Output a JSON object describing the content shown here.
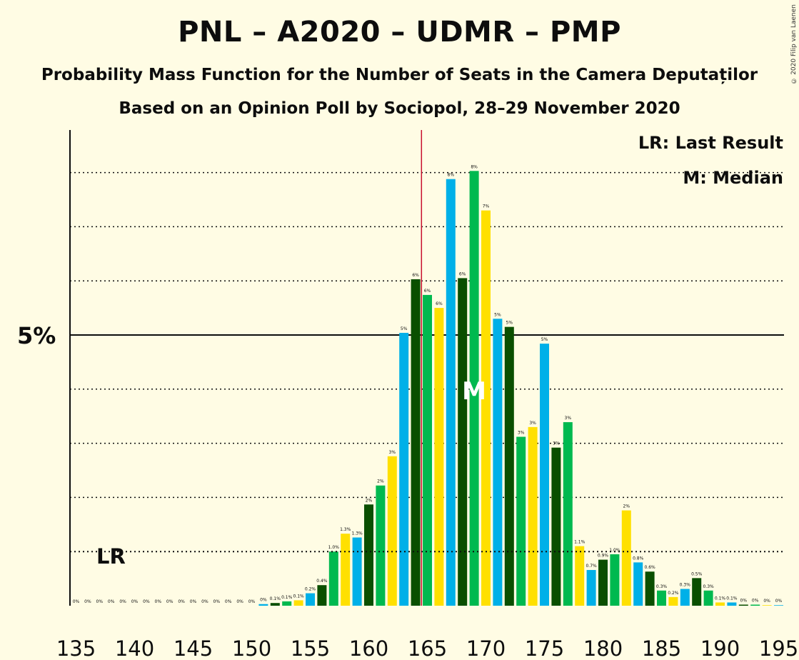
{
  "title": "PNL – A2020 – UDMR – PMP",
  "subtitle": "Probability Mass Function for the Number of Seats in the Camera Deputaților",
  "subtitle2": "Based on an Opinion Poll by Sociopol, 28–29 November 2020",
  "copyright": "© 2020 Filip van Laenen",
  "colors": {
    "background": "#FFFCE4",
    "palette": [
      "#00B0E8",
      "#0A4F00",
      "#00B94F",
      "#FFE000"
    ],
    "last_result_line": "#C8102E",
    "gridline": "#0d0d0d"
  },
  "chart_data": {
    "type": "bar",
    "x": [
      135,
      136,
      137,
      138,
      139,
      140,
      141,
      142,
      143,
      144,
      145,
      146,
      147,
      148,
      149,
      150,
      151,
      152,
      153,
      154,
      155,
      156,
      157,
      158,
      159,
      160,
      161,
      162,
      163,
      164,
      165,
      166,
      167,
      168,
      169,
      170,
      171,
      172,
      173,
      174,
      175,
      176,
      177,
      178,
      179,
      180,
      181,
      182,
      183,
      184,
      185,
      186,
      187,
      188,
      189,
      190,
      191,
      192,
      193,
      194,
      195
    ],
    "values": [
      0,
      0,
      0,
      0,
      0,
      0,
      0,
      0,
      0,
      0,
      0,
      0,
      0,
      0,
      0,
      0,
      0.03,
      0.05,
      0.08,
      0.1,
      0.23,
      0.38,
      1.0,
      1.33,
      1.26,
      1.87,
      2.22,
      2.76,
      5.04,
      6.03,
      5.74,
      5.5,
      7.88,
      6.05,
      8.03,
      7.3,
      5.3,
      5.15,
      3.12,
      3.3,
      4.84,
      2.92,
      3.39,
      1.1,
      0.66,
      0.85,
      0.95,
      1.76,
      0.8,
      0.63,
      0.28,
      0.16,
      0.31,
      0.51,
      0.28,
      0.06,
      0.06,
      0.02,
      0.02,
      0.01,
      0.01
    ],
    "labels": [
      "0%",
      "0%",
      "0%",
      "0%",
      "0%",
      "0%",
      "0%",
      "0%",
      "0%",
      "0%",
      "0%",
      "0%",
      "0%",
      "0%",
      "0%",
      "0%",
      "0%",
      "0.1%",
      "0.1%",
      "0.1%",
      "0.2%",
      "0.4%",
      "1.0%",
      "1.3%",
      "1.3%",
      "2%",
      "2%",
      "3%",
      "5%",
      "6%",
      "6%",
      "6%",
      "8%",
      "6%",
      "8%",
      "7%",
      "5%",
      "5%",
      "3%",
      "3%",
      "5%",
      "3%",
      "3%",
      "1.1%",
      "0.7%",
      "0.9%",
      "1.0%",
      "2%",
      "0.8%",
      "0.6%",
      "0.3%",
      "0.2%",
      "0.3%",
      "0.5%",
      "0.3%",
      "0.1%",
      "0.1%",
      "0%",
      "0%",
      "0%",
      "0%"
    ],
    "xticks": [
      135,
      140,
      145,
      150,
      155,
      160,
      165,
      170,
      175,
      180,
      185,
      190,
      195
    ],
    "ytick_label": "5%",
    "ytick_value": 5,
    "ylim": [
      0,
      8.7
    ],
    "gridlines": [
      1,
      2,
      3,
      4,
      5,
      6,
      7,
      8
    ],
    "last_result": 165,
    "median": 169,
    "lr_marker_value": 1.0,
    "legend": {
      "last_result": "LR: Last Result",
      "median": "M: Median",
      "lr_short": "LR",
      "median_short": "M"
    }
  }
}
